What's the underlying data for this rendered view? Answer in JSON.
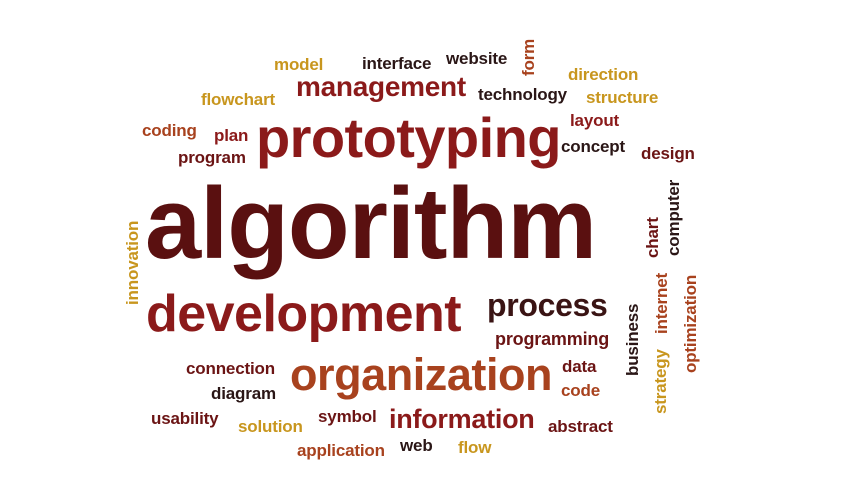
{
  "palette": {
    "dark_brown": "#4a0e0e",
    "maroon": "#6b1414",
    "crimson": "#8b1a1a",
    "rust": "#a8421e",
    "gold": "#c8961e",
    "near_black": "#2a1616"
  },
  "words": [
    {
      "id": "algorithm",
      "text": "algorithm",
      "color": "#5a1010",
      "orientation": "horizontal"
    },
    {
      "id": "prototyping",
      "text": "prototyping",
      "color": "#8b1a1a",
      "orientation": "horizontal"
    },
    {
      "id": "development",
      "text": "development",
      "color": "#8b1a1a",
      "orientation": "horizontal"
    },
    {
      "id": "organization",
      "text": "organization",
      "color": "#a8421e",
      "orientation": "horizontal"
    },
    {
      "id": "management",
      "text": "management",
      "color": "#8b1a1a",
      "orientation": "horizontal"
    },
    {
      "id": "process",
      "text": "process",
      "color": "#3a1414",
      "orientation": "horizontal"
    },
    {
      "id": "information",
      "text": "information",
      "color": "#8b1a1a",
      "orientation": "horizontal"
    },
    {
      "id": "programming",
      "text": "programming",
      "color": "#6b1414",
      "orientation": "horizontal"
    },
    {
      "id": "model",
      "text": "model",
      "color": "#c8961e",
      "orientation": "horizontal"
    },
    {
      "id": "interface",
      "text": "interface",
      "color": "#2a1616",
      "orientation": "horizontal"
    },
    {
      "id": "website",
      "text": "website",
      "color": "#2a1616",
      "orientation": "horizontal"
    },
    {
      "id": "form",
      "text": "form",
      "color": "#a8421e",
      "orientation": "vertical"
    },
    {
      "id": "direction",
      "text": "direction",
      "color": "#c8961e",
      "orientation": "horizontal"
    },
    {
      "id": "flowchart",
      "text": "flowchart",
      "color": "#c8961e",
      "orientation": "horizontal"
    },
    {
      "id": "technology",
      "text": "technology",
      "color": "#2a1616",
      "orientation": "horizontal"
    },
    {
      "id": "structure",
      "text": "structure",
      "color": "#c8961e",
      "orientation": "horizontal"
    },
    {
      "id": "coding",
      "text": "coding",
      "color": "#a8421e",
      "orientation": "horizontal"
    },
    {
      "id": "plan",
      "text": "plan",
      "color": "#8b1a1a",
      "orientation": "horizontal"
    },
    {
      "id": "program",
      "text": "program",
      "color": "#6b1414",
      "orientation": "horizontal"
    },
    {
      "id": "layout",
      "text": "layout",
      "color": "#8b1a1a",
      "orientation": "horizontal"
    },
    {
      "id": "concept",
      "text": "concept",
      "color": "#2a1616",
      "orientation": "horizontal"
    },
    {
      "id": "design",
      "text": "design",
      "color": "#6b1414",
      "orientation": "horizontal"
    },
    {
      "id": "innovation",
      "text": "innovation",
      "color": "#c8961e",
      "orientation": "vertical"
    },
    {
      "id": "chart",
      "text": "chart",
      "color": "#6b1414",
      "orientation": "vertical"
    },
    {
      "id": "computer",
      "text": "computer",
      "color": "#2a1616",
      "orientation": "vertical"
    },
    {
      "id": "business",
      "text": "business",
      "color": "#2a1616",
      "orientation": "vertical"
    },
    {
      "id": "internet",
      "text": "internet",
      "color": "#a8421e",
      "orientation": "vertical"
    },
    {
      "id": "optimization",
      "text": "optimization",
      "color": "#a8421e",
      "orientation": "vertical"
    },
    {
      "id": "strategy",
      "text": "strategy",
      "color": "#c8961e",
      "orientation": "vertical"
    },
    {
      "id": "connection",
      "text": "connection",
      "color": "#6b1414",
      "orientation": "horizontal"
    },
    {
      "id": "diagram",
      "text": "diagram",
      "color": "#2a1616",
      "orientation": "horizontal"
    },
    {
      "id": "data",
      "text": "data",
      "color": "#6b1414",
      "orientation": "horizontal"
    },
    {
      "id": "code",
      "text": "code",
      "color": "#a8421e",
      "orientation": "horizontal"
    },
    {
      "id": "usability",
      "text": "usability",
      "color": "#6b1414",
      "orientation": "horizontal"
    },
    {
      "id": "solution",
      "text": "solution",
      "color": "#c8961e",
      "orientation": "horizontal"
    },
    {
      "id": "symbol",
      "text": "symbol",
      "color": "#6b1414",
      "orientation": "horizontal"
    },
    {
      "id": "abstract",
      "text": "abstract",
      "color": "#6b1414",
      "orientation": "horizontal"
    },
    {
      "id": "application",
      "text": "application",
      "color": "#a8421e",
      "orientation": "horizontal"
    },
    {
      "id": "web",
      "text": "web",
      "color": "#2a1616",
      "orientation": "horizontal"
    },
    {
      "id": "flow",
      "text": "flow",
      "color": "#c8961e",
      "orientation": "horizontal"
    }
  ]
}
